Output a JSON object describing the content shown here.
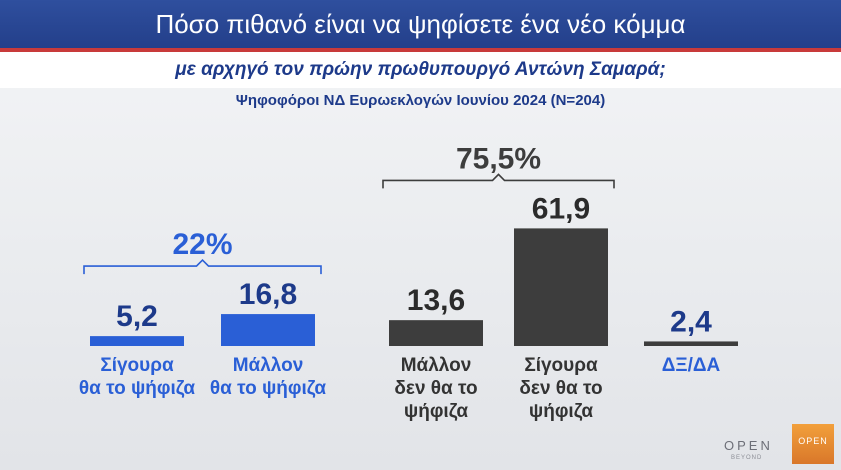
{
  "header": {
    "title": "Πόσο πιθανό είναι να ψηφίσετε ένα νέο κόμμα",
    "subtitle": "με αρχηγό τον πρώην πρωθυπουργό Αντώνη Σαμαρά;",
    "sample": "Ψηφοφόροι ΝΔ Ευρωεκλογών Ιουνίου 2024 (N=204)"
  },
  "chart_data": {
    "type": "bar",
    "categories": [
      "Σίγουρα θα το ψήφιζα",
      "Μάλλον θα το ψήφιζα",
      "Μάλλον δεν θα το ψήφιζα",
      "Σίγουρα δεν θα το ψήφιζα",
      "ΔΞ/ΔΑ"
    ],
    "category_lines": [
      [
        "Σίγουρα",
        "θα το ψήφιζα"
      ],
      [
        "Μάλλον",
        "θα το ψήφιζα"
      ],
      [
        "Μάλλον",
        "δεν θα το",
        "ψήφιζα"
      ],
      [
        "Σίγουρα",
        "δεν θα το",
        "ψήφιζα"
      ],
      [
        "ΔΞ/ΔΑ"
      ]
    ],
    "values": [
      5.2,
      16.8,
      13.6,
      61.9,
      2.4
    ],
    "value_labels": [
      "5,2",
      "16,8",
      "13,6",
      "61,9",
      "2,4"
    ],
    "bar_colors": [
      "#2a5fd6",
      "#2a5fd6",
      "#3d3d3d",
      "#3d3d3d",
      "#3d3d3d"
    ],
    "label_colors": [
      "#2a5fd6",
      "#2a5fd6",
      "#333333",
      "#333333",
      "#2a5fd6"
    ],
    "value_colors": [
      "#1d3a8a",
      "#1d3a8a",
      "#2b2b2b",
      "#2b2b2b",
      "#1d3a8a"
    ],
    "groups": [
      {
        "label": "22%",
        "from": 0,
        "to": 1,
        "color": "#2a5fd6"
      },
      {
        "label": "75,5%",
        "from": 2,
        "to": 3,
        "color": "#3d3d3d"
      }
    ]
  },
  "logos": {
    "open": "OPEN",
    "beyond": "BEYOND",
    "box": "OPEN"
  }
}
